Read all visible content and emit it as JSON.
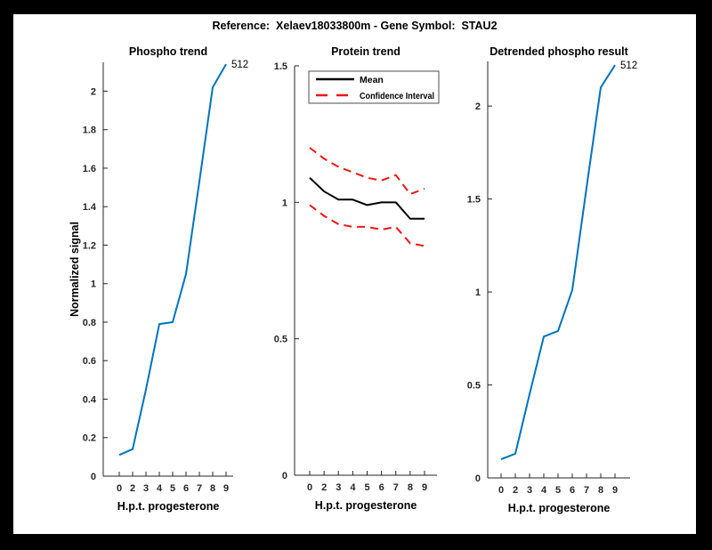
{
  "figure": {
    "title": "Reference:  Xelaev18033800m - Gene Symbol:  STAU2",
    "background_color": "#000000",
    "figure_color": "#ffffff",
    "axis_color": "#262626",
    "blue": "#0072bd",
    "red": "#f01616",
    "black": "#000000"
  },
  "chart_data": [
    {
      "type": "line",
      "title": "Phospho trend",
      "xlabel": "H.p.t. progesterone",
      "ylabel": "Normalized signal",
      "x_tick_labels": [
        "0",
        "2",
        "3",
        "4",
        "5",
        "6",
        "7",
        "8",
        "9"
      ],
      "ylim": [
        0,
        2.15
      ],
      "yticks": [
        0,
        0.2,
        0.4,
        0.6,
        0.8,
        1,
        1.2,
        1.4,
        1.6,
        1.8,
        2
      ],
      "grid": false,
      "legend": null,
      "series": [
        {
          "name": "512",
          "color": "#0072bd",
          "dash": "solid",
          "end_label": "512",
          "values": [
            0.11,
            0.14,
            0.45,
            0.79,
            0.8,
            1.05,
            1.53,
            2.02,
            2.14
          ]
        }
      ]
    },
    {
      "type": "line",
      "title": "Protein trend",
      "xlabel": "H.p.t. progesterone",
      "ylabel": "",
      "x_tick_labels": [
        "0",
        "2",
        "3",
        "4",
        "5",
        "6",
        "7",
        "8",
        "9"
      ],
      "ylim": [
        0,
        1.5
      ],
      "yticks": [
        0,
        0.5,
        1,
        1.5
      ],
      "grid": false,
      "legend": {
        "position": "northwest",
        "entries": [
          {
            "label": "Mean",
            "color": "#000000",
            "dash": "solid"
          },
          {
            "label": "Confidence Interval",
            "color": "#f01616",
            "dash": "dashed"
          }
        ]
      },
      "series": [
        {
          "name": "Mean",
          "color": "#000000",
          "dash": "solid",
          "values": [
            1.09,
            1.04,
            1.01,
            1.01,
            0.99,
            1.0,
            1.0,
            0.94,
            0.94
          ]
        },
        {
          "name": "Confidence Interval",
          "color": "#f01616",
          "dash": "dashed",
          "values": [
            1.2,
            1.16,
            1.13,
            1.11,
            1.09,
            1.08,
            1.1,
            1.03,
            1.05
          ]
        },
        {
          "name": "Confidence Interval",
          "color": "#f01616",
          "dash": "dashed",
          "values": [
            0.99,
            0.95,
            0.92,
            0.91,
            0.91,
            0.9,
            0.91,
            0.85,
            0.84
          ]
        }
      ]
    },
    {
      "type": "line",
      "title": "Detrended phospho result",
      "xlabel": "H.p.t. progesterone",
      "ylabel": "",
      "x_tick_labels": [
        "0",
        "2",
        "3",
        "4",
        "5",
        "6",
        "7",
        "8",
        "9"
      ],
      "ylim": [
        0,
        2.24
      ],
      "yticks": [
        0,
        0.5,
        1,
        1.5,
        2
      ],
      "grid": false,
      "legend": null,
      "series": [
        {
          "name": "512",
          "color": "#0072bd",
          "dash": "solid",
          "end_label": "512",
          "values": [
            0.1,
            0.13,
            0.45,
            0.76,
            0.79,
            1.01,
            1.56,
            2.1,
            2.22
          ]
        }
      ]
    }
  ]
}
